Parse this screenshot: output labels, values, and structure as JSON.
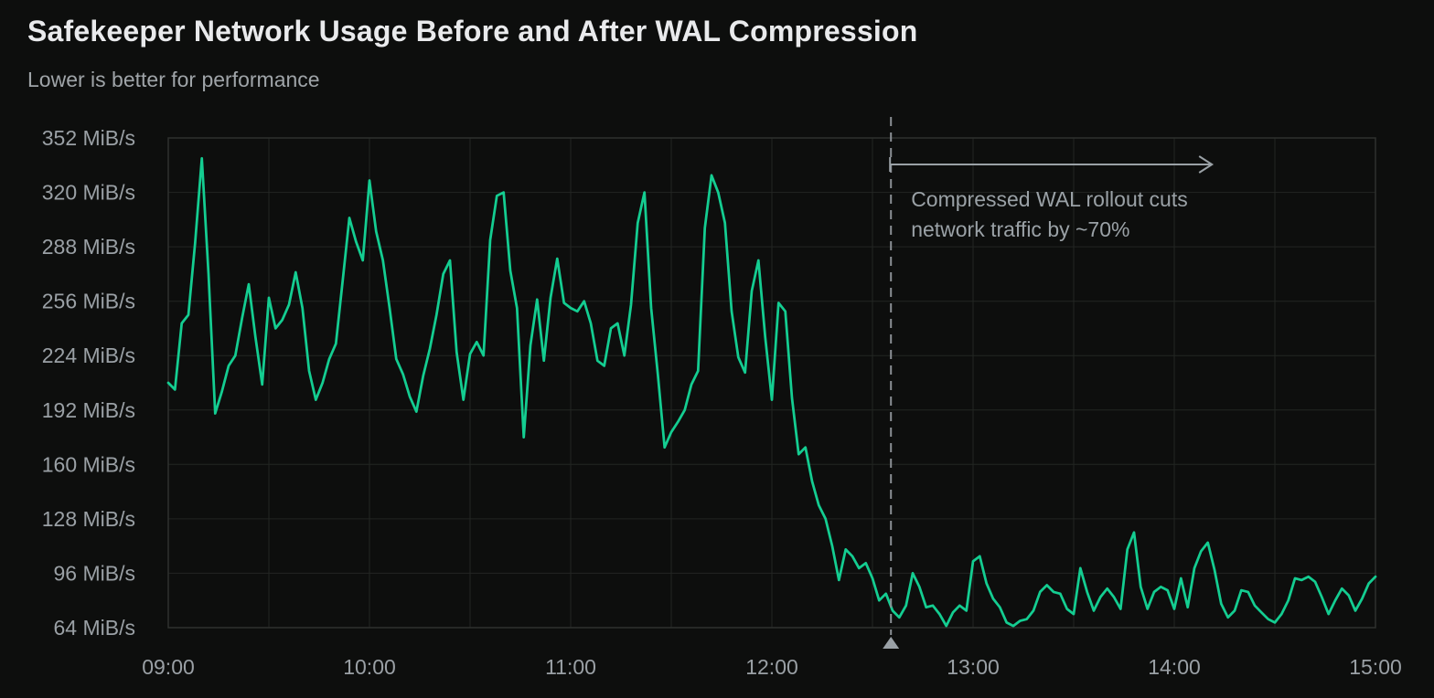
{
  "page": {
    "background": "#0d0e0d"
  },
  "chart_data": {
    "type": "line",
    "title": "Safekeeper Network Usage Before and After WAL Compression",
    "subtitle": "Lower is better for performance",
    "unit": "MiB/s",
    "ylim": [
      64,
      352
    ],
    "y_ticks": [
      64,
      96,
      128,
      160,
      192,
      224,
      256,
      288,
      320,
      352
    ],
    "y_tick_labels": [
      "64 MiB/s",
      "96 MiB/s",
      "128 MiB/s",
      "160 MiB/s",
      "192 MiB/s",
      "224 MiB/s",
      "256 MiB/s",
      "288 MiB/s",
      "320 MiB/s",
      "352 MiB/s"
    ],
    "x_labels": [
      "09:00",
      "10:00",
      "11:00",
      "12:00",
      "13:00",
      "14:00",
      "15:00"
    ],
    "x_total_minutes": 360,
    "x_grid_step_minutes": 30,
    "x_step_minutes": 2,
    "grid": true,
    "legend": "none",
    "colors": {
      "line": "#14cd91",
      "grid": "#232623",
      "plot_border": "#2e312e",
      "axis_text": "#9aa0a5",
      "title_text": "#e9eaec",
      "subtitle_text": "#9fa4a8",
      "annotation": "#9aa1a6",
      "marker_line": "#8a8f94"
    },
    "series": [
      {
        "color": "#14cd91",
        "values": [
          208,
          204,
          243,
          248,
          290,
          340,
          272,
          190,
          203,
          218,
          224,
          246,
          266,
          235,
          207,
          258,
          240,
          245,
          254,
          273,
          252,
          215,
          198,
          208,
          222,
          231,
          268,
          305,
          291,
          280,
          327,
          297,
          280,
          252,
          222,
          213,
          200,
          191,
          212,
          228,
          248,
          272,
          280,
          226,
          198,
          225,
          232,
          224,
          292,
          318,
          320,
          274,
          252,
          176,
          230,
          257,
          221,
          258,
          281,
          255,
          252,
          250,
          256,
          243,
          221,
          218,
          240,
          243,
          224,
          254,
          302,
          320,
          252,
          213,
          170,
          179,
          185,
          192,
          207,
          215,
          299,
          330,
          320,
          302,
          250,
          223,
          214,
          262,
          280,
          235,
          198,
          255,
          250,
          199,
          166,
          170,
          150,
          136,
          128,
          112,
          92,
          110,
          106,
          99,
          102,
          93,
          80,
          84,
          74,
          70,
          77,
          96,
          88,
          76,
          77,
          72,
          65,
          73,
          77,
          74,
          103,
          106,
          90,
          81,
          76,
          67,
          65,
          68,
          69,
          74,
          85,
          89,
          85,
          84,
          75,
          72,
          99,
          85,
          74,
          82,
          87,
          82,
          75,
          110,
          120,
          88,
          75,
          85,
          88,
          86,
          75,
          93,
          76,
          99,
          109,
          114,
          98,
          78,
          70,
          74,
          86,
          85,
          77,
          73,
          69,
          67,
          72,
          80,
          93,
          92,
          94,
          91,
          82,
          72,
          80,
          87,
          83,
          74,
          81,
          90,
          94
        ]
      }
    ],
    "annotation": {
      "time_minutes": 215.5,
      "line1": "Compressed WAL rollout cuts",
      "line2": "network traffic by ~70%"
    }
  }
}
